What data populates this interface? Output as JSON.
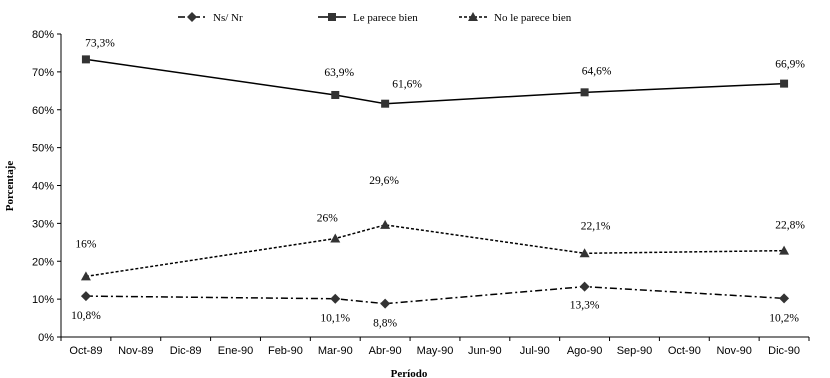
{
  "chart_data": {
    "type": "line",
    "categories": [
      "Oct-89",
      "Nov-89",
      "Dic-89",
      "Ene-90",
      "Feb-90",
      "Mar-90",
      "Abr-90",
      "May-90",
      "Jun-90",
      "Jul-90",
      "Ago-90",
      "Sep-90",
      "Oct-90",
      "Nov-90",
      "Dic-90"
    ],
    "series": [
      {
        "name": "Ns/ Nr",
        "marker": "diamond",
        "dash": "dashdot",
        "color": "#000000",
        "points": [
          {
            "x": "Oct-89",
            "y": 10.8,
            "label": "10,8%"
          },
          {
            "x": "Mar-90",
            "y": 10.1,
            "label": "10,1%"
          },
          {
            "x": "Abr-90",
            "y": 8.8,
            "label": "8,8%"
          },
          {
            "x": "Ago-90",
            "y": 13.3,
            "label": "13,3%"
          },
          {
            "x": "Dic-90",
            "y": 10.2,
            "label": "10,2%"
          }
        ]
      },
      {
        "name": "Le parece bien",
        "marker": "square",
        "dash": "solid",
        "color": "#000000",
        "points": [
          {
            "x": "Oct-89",
            "y": 73.3,
            "label": "73,3%"
          },
          {
            "x": "Mar-90",
            "y": 63.9,
            "label": "63,9%"
          },
          {
            "x": "Abr-90",
            "y": 61.6,
            "label": "61,6%"
          },
          {
            "x": "Ago-90",
            "y": 64.6,
            "label": "64,6%"
          },
          {
            "x": "Dic-90",
            "y": 66.9,
            "label": "66,9%"
          }
        ]
      },
      {
        "name": "No le parece bien",
        "marker": "triangle",
        "dash": "dotted",
        "color": "#000000",
        "points": [
          {
            "x": "Oct-89",
            "y": 16.0,
            "label": "16%"
          },
          {
            "x": "Mar-90",
            "y": 26.0,
            "label": "26%"
          },
          {
            "x": "Abr-90",
            "y": 29.6,
            "label": "29,6%"
          },
          {
            "x": "Ago-90",
            "y": 22.1,
            "label": "22,1%"
          },
          {
            "x": "Dic-90",
            "y": 22.8,
            "label": "22,8%"
          }
        ]
      }
    ],
    "yticks": [
      "0%",
      "10%",
      "20%",
      "30%",
      "40%",
      "50%",
      "60%",
      "70%",
      "80%"
    ],
    "ylim": [
      0,
      80
    ],
    "xlabel": "Período",
    "ylabel": "Porcentaje",
    "legend_position": "top-center",
    "grid": false
  }
}
